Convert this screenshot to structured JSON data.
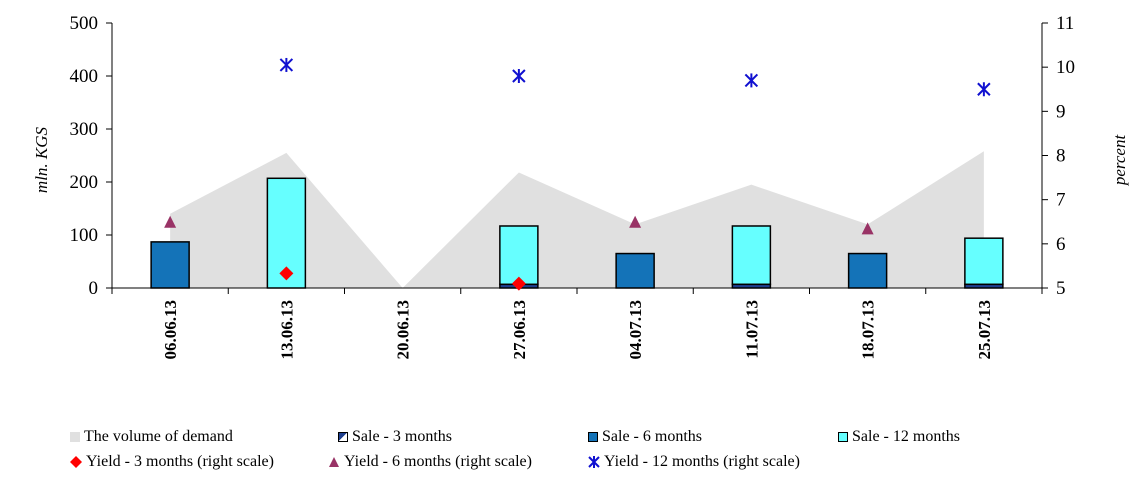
{
  "chart_data": {
    "type": "bar",
    "categories": [
      "06.06.13",
      "13.06.13",
      "20.06.13",
      "27.06.13",
      "04.07.13",
      "11.07.13",
      "18.07.13",
      "25.07.13"
    ],
    "y_left": {
      "label": "mln. KGS",
      "ylim": [
        0,
        500
      ],
      "ticks": [
        "0",
        "100",
        "200",
        "300",
        "400",
        "500"
      ]
    },
    "y_right": {
      "label": "percent",
      "ylim": [
        5,
        11
      ],
      "ticks": [
        "5",
        "6",
        "7",
        "8",
        "9",
        "10",
        "11"
      ]
    },
    "series": [
      {
        "name": "The volume of demand",
        "kind": "area",
        "axis": "left",
        "color": "#e0e0e0",
        "values": [
          140,
          255,
          0,
          218,
          120,
          195,
          120,
          258
        ]
      },
      {
        "name": "Sale - 3 months",
        "kind": "bar",
        "axis": "left",
        "color": "#1f3f8f",
        "values": [
          0,
          0,
          0,
          7,
          0,
          7,
          0,
          7
        ]
      },
      {
        "name": "Sale - 6 months",
        "kind": "bar",
        "axis": "left",
        "color": "#1473b8",
        "values": [
          87,
          0,
          0,
          0,
          65,
          0,
          65,
          0
        ]
      },
      {
        "name": "Sale - 12 months",
        "kind": "bar",
        "axis": "left",
        "color": "#66ffff",
        "values": [
          0,
          207,
          0,
          110,
          0,
          110,
          0,
          87
        ]
      },
      {
        "name": "Yield - 3 months (right scale)",
        "kind": "marker",
        "axis": "right",
        "marker": "diamond",
        "color": "#ff0000",
        "values": [
          null,
          5.33,
          null,
          5.1,
          null,
          null,
          null,
          null
        ]
      },
      {
        "name": "Yield - 6 months (right scale)",
        "kind": "marker",
        "axis": "right",
        "marker": "triangle",
        "color": "#993366",
        "values": [
          6.5,
          null,
          null,
          null,
          6.5,
          null,
          6.35,
          null
        ]
      },
      {
        "name": "Yield - 12 months (right scale)",
        "kind": "marker",
        "axis": "right",
        "marker": "star",
        "color": "#1010d0",
        "values": [
          null,
          10.05,
          null,
          9.8,
          null,
          9.7,
          null,
          9.5
        ]
      }
    ],
    "grid": false,
    "legend_position": "bottom"
  }
}
